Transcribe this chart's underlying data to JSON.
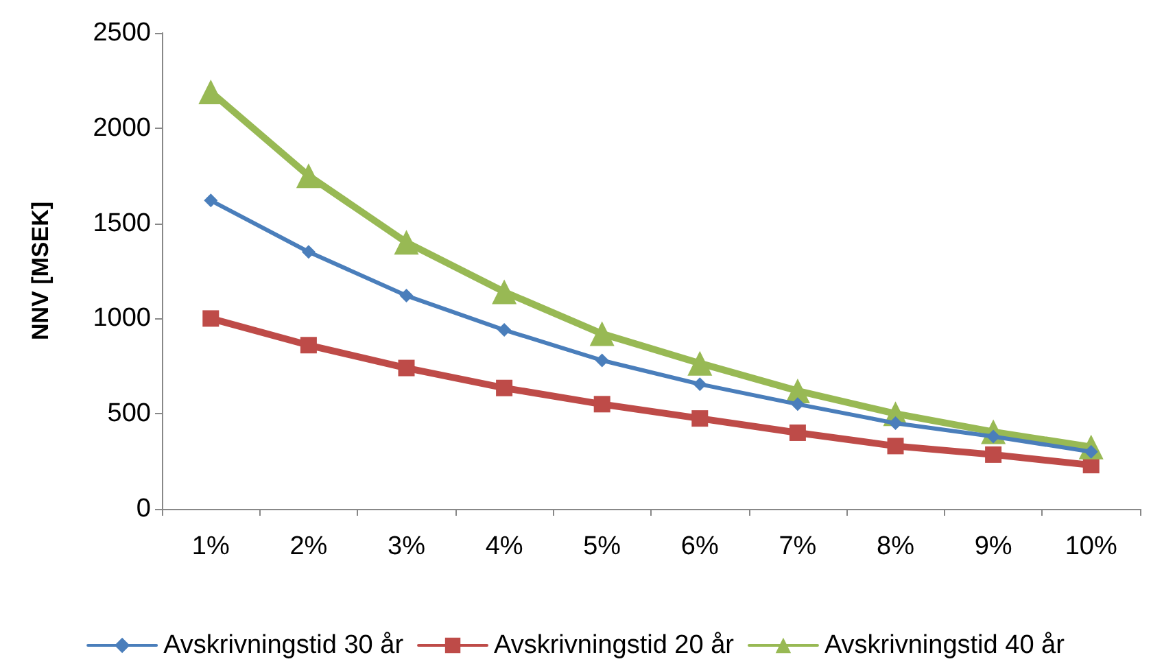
{
  "chart_data": {
    "type": "line",
    "ylabel": "NNV [MSEK]",
    "categories": [
      "1%",
      "2%",
      "3%",
      "4%",
      "5%",
      "6%",
      "7%",
      "8%",
      "9%",
      "10%"
    ],
    "series": [
      {
        "name": "Avskrivningstid 30 år",
        "color": "#4a7ebb",
        "marker": "diamond",
        "values": [
          1620,
          1350,
          1120,
          940,
          780,
          655,
          550,
          450,
          380,
          300
        ]
      },
      {
        "name": "Avskrivningstid 20 år",
        "color": "#be4b48",
        "marker": "square",
        "values": [
          1000,
          860,
          740,
          635,
          550,
          475,
          400,
          330,
          285,
          230
        ]
      },
      {
        "name": "Avskrivningstid 40 år",
        "color": "#98b954",
        "marker": "triangle",
        "values": [
          2190,
          1750,
          1400,
          1140,
          920,
          765,
          620,
          500,
          405,
          325
        ]
      }
    ],
    "ylim": [
      0,
      2500
    ],
    "yticks": [
      0,
      500,
      1000,
      1500,
      2000,
      2500
    ],
    "grid": false,
    "legend": "bottom",
    "line_style": "solid"
  }
}
